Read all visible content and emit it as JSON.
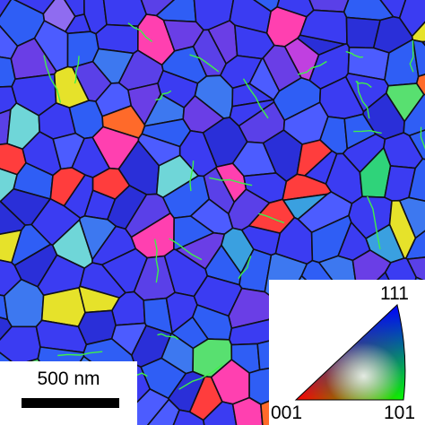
{
  "micrograph": {
    "grain_palette": [
      "#3b3cf2",
      "#2f5ef5",
      "#5a40e8",
      "#3d78f0",
      "#6a3ee6",
      "#2a2fd8",
      "#4c5cff",
      "#3aa0e0",
      "#6fd6d8",
      "#58e070",
      "#2fd37a",
      "#ff3d3d",
      "#ff6a2a",
      "#e6e22a",
      "#c040e0",
      "#ff40b0",
      "#8f6cf0",
      "#9ad04a"
    ],
    "boundary_color": "#101018",
    "twin_boundary_color": "#3ff04a"
  },
  "scale_bar": {
    "label": "500 nm"
  },
  "ipf_key": {
    "labels": {
      "top": "111",
      "bottom_left": "001",
      "bottom_right": "101"
    },
    "colors": {
      "c001": "#ff0000",
      "c101": "#00ff00",
      "c111": "#0000ff"
    }
  }
}
